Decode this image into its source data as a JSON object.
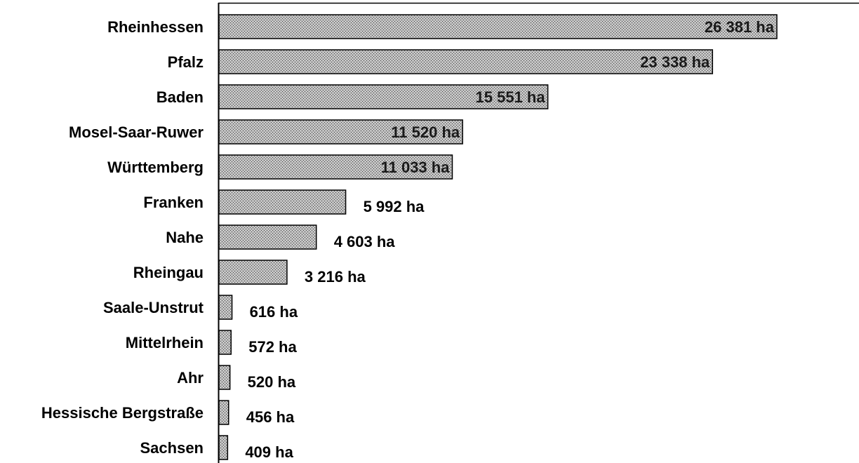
{
  "chart_data": {
    "type": "bar",
    "orientation": "horizontal",
    "title": "",
    "xlabel": "",
    "ylabel": "",
    "unit": "ha",
    "categories": [
      "Rheinhessen",
      "Pfalz",
      "Baden",
      "Mosel-Saar-Ruwer",
      "Württemberg",
      "Franken",
      "Nahe",
      "Rheingau",
      "Saale-Unstrut",
      "Mittelrhein",
      "Ahr",
      "Hessische Bergstraße",
      "Sachsen"
    ],
    "values": [
      26381,
      23338,
      15551,
      11520,
      11033,
      5992,
      4603,
      3216,
      616,
      572,
      520,
      456,
      409
    ],
    "data_labels": [
      "26 381 ha",
      "23 338 ha",
      "15 551 ha",
      "11 520 ha",
      "11 033 ha",
      "5 992 ha",
      "4 603 ha",
      "3 216 ha",
      "616 ha",
      "572 ha",
      "520 ha",
      "456 ha",
      "409 ha"
    ],
    "label_inside": [
      true,
      true,
      true,
      true,
      true,
      false,
      false,
      false,
      false,
      false,
      false,
      false,
      false
    ],
    "xlim": [
      0,
      29800
    ],
    "grid": false,
    "legend": "none",
    "bar_color": "#a9a9a9",
    "bar_pattern": "dithered-gray"
  }
}
